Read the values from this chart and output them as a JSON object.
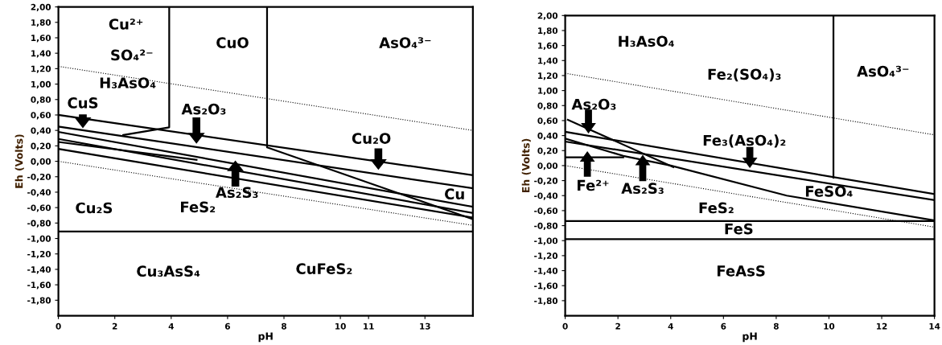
{
  "chart_data": [
    {
      "type": "line",
      "xlabel": "pH",
      "ylabel": "Eh (Volts)",
      "xlim": [
        0,
        14.7
      ],
      "ylim": [
        -2,
        2
      ],
      "xticks": [
        0,
        2,
        4,
        6,
        8,
        10,
        11,
        13
      ],
      "yticks": [
        {
          "value": 2,
          "label": "2,00"
        },
        {
          "value": 1.8,
          "label": "1,80"
        },
        {
          "value": 1.6,
          "label": "1,60"
        },
        {
          "value": 1.4,
          "label": "1,40"
        },
        {
          "value": 1.2,
          "label": "1,20"
        },
        {
          "value": 1,
          "label": "1,00"
        },
        {
          "value": 0.8,
          "label": "0,80"
        },
        {
          "value": 0.6,
          "label": "0,60"
        },
        {
          "value": 0.4,
          "label": "0,40"
        },
        {
          "value": 0.2,
          "label": "0,20"
        },
        {
          "value": 0,
          "label": "0,00"
        },
        {
          "value": -0.2,
          "label": "-0,20"
        },
        {
          "value": -0.4,
          "label": "-0,40"
        },
        {
          "value": -0.6,
          "label": "-0,60"
        },
        {
          "value": -0.8,
          "label": "-0,80"
        },
        {
          "value": -1,
          "label": "-1,00"
        },
        {
          "value": -1.2,
          "label": "-1,20"
        },
        {
          "value": -1.4,
          "label": "-1,40"
        },
        {
          "value": -1.6,
          "label": "-1,60"
        },
        {
          "value": -1.8,
          "label": "-1,80"
        }
      ],
      "grid": false,
      "legend": false,
      "marker": "none",
      "series": [
        {
          "color": "#000000",
          "x": [
            2.3,
            3.93,
            3.93
          ],
          "values": [
            0.34,
            0.44,
            2
          ]
        },
        {
          "color": "#000000",
          "x": [
            7.4,
            7.4,
            14.7
          ],
          "values": [
            2,
            0.18,
            -0.75
          ]
        },
        {
          "color": "#000000",
          "x": [
            0,
            14.7
          ],
          "values": [
            0.6,
            -0.18
          ]
        },
        {
          "color": "#000000",
          "x": [
            0,
            14.7
          ],
          "values": [
            0.45,
            -0.35
          ]
        },
        {
          "color": "#000000",
          "x": [
            0,
            14.7
          ],
          "values": [
            0.38,
            -0.59
          ]
        },
        {
          "color": "#000000",
          "x": [
            0,
            14.7
          ],
          "values": [
            0.29,
            -0.67
          ]
        },
        {
          "color": "#000000",
          "x": [
            0,
            4.9
          ],
          "values": [
            0.25,
            0.02
          ]
        },
        {
          "color": "#000000",
          "x": [
            0,
            14.7
          ],
          "values": [
            0.16,
            -0.73
          ]
        },
        {
          "color": "#000000",
          "x": [
            0,
            14.7
          ],
          "values": [
            -0.91,
            -0.91
          ]
        },
        {
          "color": "#000000",
          "line_style": "dotted",
          "x": [
            0,
            14.7
          ],
          "values": [
            1.23,
            0.4
          ]
        },
        {
          "color": "#000000",
          "line_style": "dotted",
          "x": [
            0,
            14.7
          ],
          "values": [
            0,
            -0.83
          ]
        }
      ],
      "annotations": [
        "Cu²⁺",
        "SO₄²⁻",
        "H₃AsO₄",
        "CuO",
        "AsO₄³⁻",
        "CuS",
        "As₂O₃",
        "Cu₂O",
        "As₂S₃",
        "Cu",
        "Cu₂S",
        "FeS₂",
        "Cu₃AsS₄",
        "CuFeS₂"
      ]
    },
    {
      "type": "line",
      "xlabel": "pH",
      "ylabel": "Eh (Volts)",
      "xlim": [
        0,
        14
      ],
      "ylim": [
        -2,
        2
      ],
      "xticks": [
        0,
        2,
        4,
        6,
        8,
        10,
        12,
        14
      ],
      "yticks": [
        {
          "value": 2,
          "label": "2,00"
        },
        {
          "value": 1.8,
          "label": "1,80"
        },
        {
          "value": 1.6,
          "label": "1,60"
        },
        {
          "value": 1.4,
          "label": "1,40"
        },
        {
          "value": 1.2,
          "label": "1,20"
        },
        {
          "value": 1,
          "label": "1,00"
        },
        {
          "value": 0.8,
          "label": "0,80"
        },
        {
          "value": 0.6,
          "label": "0,60"
        },
        {
          "value": 0.4,
          "label": "0,40"
        },
        {
          "value": 0.2,
          "label": "0,20"
        },
        {
          "value": 0,
          "label": "0,00"
        },
        {
          "value": -0.2,
          "label": "-0,20"
        },
        {
          "value": -0.4,
          "label": "-0,40"
        },
        {
          "value": -0.6,
          "label": "-0,60"
        },
        {
          "value": -0.8,
          "label": "-0,80"
        },
        {
          "value": -1,
          "label": "-1,00"
        },
        {
          "value": -1.2,
          "label": "-1,20"
        },
        {
          "value": -1.4,
          "label": "-1,40"
        },
        {
          "value": -1.6,
          "label": "-1,60"
        },
        {
          "value": -1.8,
          "label": "-1,80"
        }
      ],
      "grid": false,
      "legend": false,
      "marker": "none",
      "series": [
        {
          "color": "#000000",
          "x": [
            10.17,
            10.17
          ],
          "values": [
            2,
            -0.16
          ]
        },
        {
          "color": "#000000",
          "x": [
            0,
            14
          ],
          "values": [
            0.45,
            -0.38
          ]
        },
        {
          "color": "#000000",
          "x": [
            0,
            14
          ],
          "values": [
            0.32,
            -0.46
          ]
        },
        {
          "color": "#000000",
          "x": [
            0,
            2.2,
            4,
            8.4,
            14
          ],
          "values": [
            0.36,
            0.13,
            0.0,
            -0.4,
            -0.73
          ]
        },
        {
          "color": "#000000",
          "x": [
            0.1,
            4.1
          ],
          "values": [
            0.61,
            -0.02
          ]
        },
        {
          "color": "#000000",
          "x": [
            0,
            2.2
          ],
          "values": [
            0.11,
            0.11
          ]
        },
        {
          "color": "#000000",
          "x": [
            0,
            14
          ],
          "values": [
            -0.74,
            -0.74
          ]
        },
        {
          "color": "#000000",
          "x": [
            0,
            14
          ],
          "values": [
            -0.98,
            -0.98
          ]
        },
        {
          "color": "#000000",
          "line_style": "dotted",
          "x": [
            0,
            14
          ],
          "values": [
            1.23,
            0.41
          ]
        },
        {
          "color": "#000000",
          "line_style": "dotted",
          "x": [
            0,
            14
          ],
          "values": [
            0,
            -0.82
          ]
        }
      ],
      "annotations": [
        "H₃AsO₄",
        "Fe₂(SO₄)₃",
        "AsO₄³⁻",
        "As₂O₃",
        "Fe₃(AsO₄)₂",
        "Fe²⁺",
        "As₂S₃",
        "FeSO₄",
        "FeS₂",
        "FeS",
        "FeAsS"
      ]
    }
  ]
}
